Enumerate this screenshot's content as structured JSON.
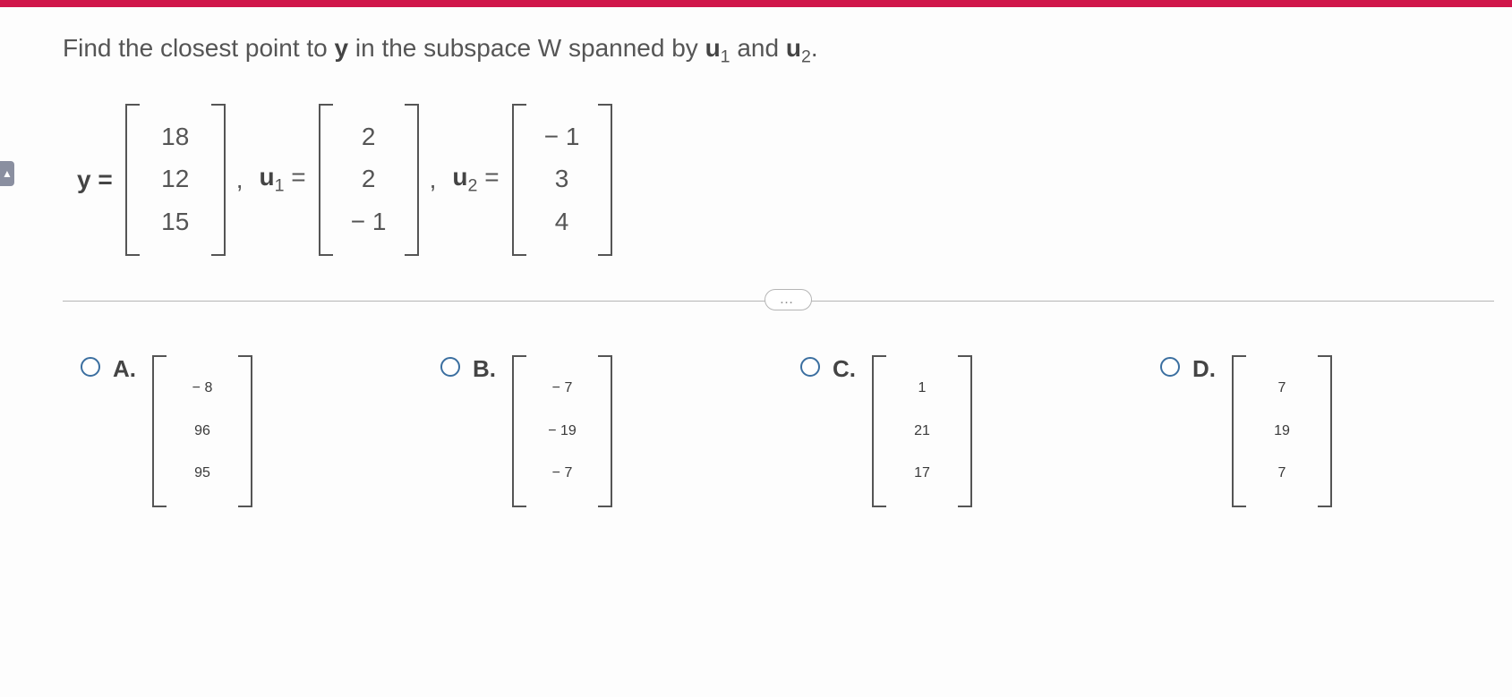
{
  "colors": {
    "topbar": "#d0164a",
    "text": "#3a3a3a",
    "muted": "#555555",
    "divider": "#b5b5b5",
    "radio_border": "#3b6fa0",
    "background": "#fdfdfd"
  },
  "question": {
    "prefix": "Find the closest point to ",
    "y": "y",
    "mid": " in the subspace W spanned by ",
    "u1": "u",
    "u1_sub": "1",
    "and": " and ",
    "u2": "u",
    "u2_sub": "2",
    "suffix": "."
  },
  "given": {
    "y_label": "y =",
    "y": [
      "18",
      "12",
      "15"
    ],
    "comma1": ",",
    "u1_label_base": "u",
    "u1_label_sub": "1",
    "u1_label_eq": " =",
    "u1": [
      "2",
      "2",
      "− 1"
    ],
    "comma2": ",",
    "u2_label_base": "u",
    "u2_label_sub": "2",
    "u2_label_eq": " =",
    "u2": [
      "− 1",
      "3",
      "4"
    ]
  },
  "dots": "…",
  "options": {
    "A": {
      "label": "A.",
      "vec": [
        "− 8",
        "96",
        "95"
      ]
    },
    "B": {
      "label": "B.",
      "vec": [
        "− 7",
        "− 19",
        "− 7"
      ]
    },
    "C": {
      "label": "C.",
      "vec": [
        "1",
        "21",
        "17"
      ]
    },
    "D": {
      "label": "D.",
      "vec": [
        "7",
        "19",
        "7"
      ]
    }
  },
  "left_tab": "▲"
}
